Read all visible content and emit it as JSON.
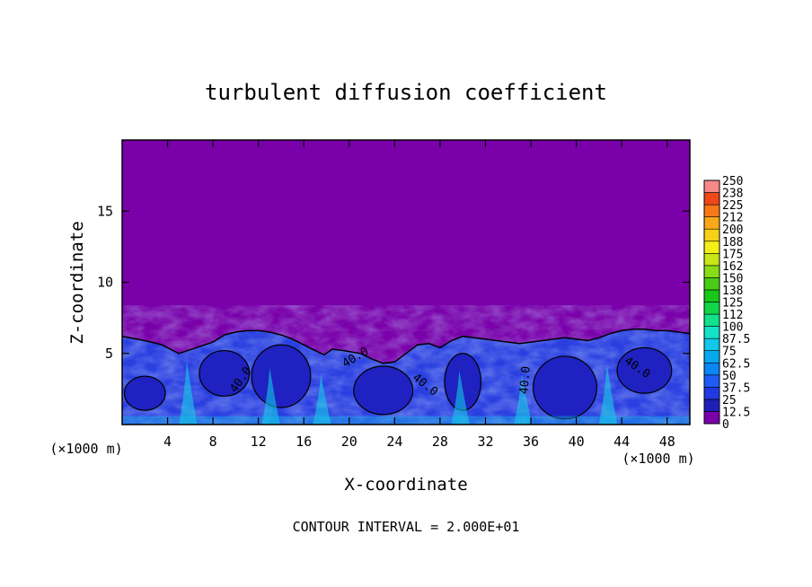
{
  "chart_data": {
    "type": "heatmap",
    "title": "turbulent diffusion coefficient",
    "xlabel": "X-coordinate",
    "ylabel": "Z-coordinate",
    "x_unit": "(×1000 m)",
    "x_ticks": [
      4,
      8,
      12,
      16,
      20,
      24,
      28,
      32,
      36,
      40,
      44,
      48
    ],
    "y_ticks": [
      5,
      10,
      15
    ],
    "xlim": [
      0,
      50
    ],
    "ylim": [
      0,
      20
    ],
    "footer": "CONTOUR INTERVAL = 2.000E+01",
    "colorbar": {
      "levels": [
        "0",
        "12.5",
        "25",
        "37.5",
        "50",
        "62.5",
        "75",
        "87.5",
        "100",
        "112",
        "125",
        "138",
        "150",
        "162",
        "175",
        "188",
        "200",
        "212",
        "225",
        "238",
        "250"
      ],
      "colors": [
        "#7a00aa",
        "#1f1fb8",
        "#1f3ae0",
        "#1f5cf5",
        "#0a86f5",
        "#08a8ee",
        "#10c8ea",
        "#14e2c8",
        "#12e28c",
        "#12d64a",
        "#18c818",
        "#48cc18",
        "#88dc18",
        "#c8e618",
        "#f2f018",
        "#f8d018",
        "#f8a818",
        "#f87818",
        "#f04818",
        "#f81818",
        "#f88888"
      ]
    },
    "contour_labels": [
      {
        "text": "40.0",
        "x": 10.7,
        "z": 3.0,
        "angle": -55
      },
      {
        "text": "40.0",
        "x": 20.7,
        "z": 4.5,
        "angle": -30
      },
      {
        "text": "40.0",
        "x": 26.5,
        "z": 2.6,
        "angle": 38
      },
      {
        "text": "40.0",
        "x": 35.8,
        "z": 3.1,
        "angle": -85
      },
      {
        "text": "40.0",
        "x": 45.2,
        "z": 3.8,
        "angle": 35
      }
    ],
    "boundary_layer_top_x": [
      0,
      2,
      3.5,
      5,
      6.5,
      8,
      9,
      10,
      11,
      12,
      13,
      14,
      15,
      16,
      17,
      17.8,
      18.5,
      19.5,
      21,
      22,
      23,
      24,
      25,
      26,
      27,
      28,
      29,
      30,
      31,
      32,
      33,
      34,
      35,
      36,
      37,
      38,
      39,
      40,
      41,
      42,
      43,
      44,
      45,
      46,
      47,
      48,
      49,
      50
    ],
    "boundary_layer_top_z": [
      6.2,
      5.9,
      5.6,
      5.0,
      5.4,
      5.8,
      6.3,
      6.5,
      6.6,
      6.6,
      6.5,
      6.3,
      6.0,
      5.6,
      5.2,
      4.9,
      5.3,
      5.2,
      5.0,
      4.6,
      4.3,
      4.4,
      5.0,
      5.6,
      5.7,
      5.4,
      5.9,
      6.2,
      6.1,
      6.0,
      5.9,
      5.8,
      5.7,
      5.8,
      5.9,
      6.0,
      6.1,
      6.0,
      5.9,
      6.1,
      6.4,
      6.6,
      6.7,
      6.7,
      6.6,
      6.6,
      6.5,
      6.4
    ]
  }
}
